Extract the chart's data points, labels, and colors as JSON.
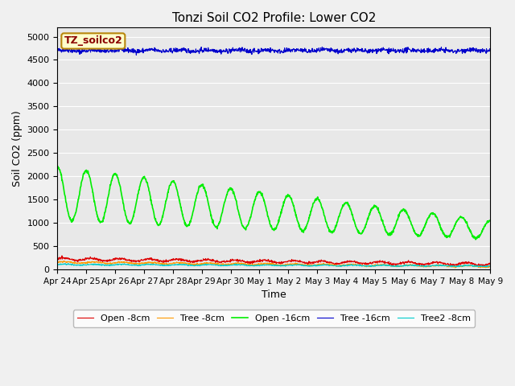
{
  "title": "Tonzi Soil CO2 Profile: Lower CO2",
  "xlabel": "Time",
  "ylabel": "Soil CO2 (ppm)",
  "watermark": "TZ_soilco2",
  "watermark_color": "#8b0000",
  "watermark_bg": "#ffffcc",
  "watermark_edge": "#b8860b",
  "ylim": [
    0,
    5200
  ],
  "yticks": [
    0,
    500,
    1000,
    1500,
    2000,
    2500,
    3000,
    3500,
    4000,
    4500,
    5000
  ],
  "fig_color": "#f0f0f0",
  "plot_bg": "#e8e8e8",
  "series": {
    "open_8cm": {
      "label": "Open -8cm",
      "color": "#dd0000",
      "lw": 0.8
    },
    "tree_8cm": {
      "label": "Tree -8cm",
      "color": "#ff9900",
      "lw": 0.8
    },
    "open_16cm": {
      "label": "Open -16cm",
      "color": "#00ee00",
      "lw": 1.2
    },
    "tree_16cm": {
      "label": "Tree -16cm",
      "color": "#0000cc",
      "lw": 0.8
    },
    "tree2_8cm": {
      "label": "Tree2 -8cm",
      "color": "#00cccc",
      "lw": 0.8
    }
  },
  "n_days": 15,
  "points_per_day": 96,
  "tick_labels": [
    "Apr 24",
    "Apr 25",
    "Apr 26",
    "Apr 27",
    "Apr 28",
    "Apr 29",
    "Apr 30",
    "May 1",
    "May 2",
    "May 3",
    "May 4",
    "May 5",
    "May 6",
    "May 7",
    "May 8",
    "May 9"
  ]
}
